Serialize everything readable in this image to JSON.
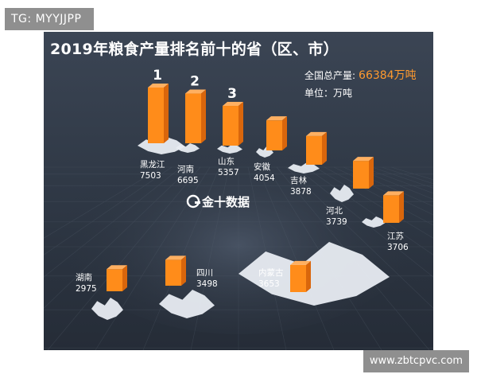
{
  "tag": "TG: MYYJJPP",
  "watermark": "www.zbtcpvc.com",
  "header": {
    "title": "2019年粮食产量排名前十的省（区、市）",
    "total_label": "全国总产量:",
    "total_value": "66384万吨",
    "unit": "单位：万吨"
  },
  "logo_text": "金十数据",
  "colors": {
    "bar_front": "#ff8c1a",
    "bar_top": "#ffb062",
    "bar_side": "#d9660c",
    "accent": "#ff9a2e"
  },
  "chart_data": {
    "type": "bar",
    "categories": [
      "黑龙江",
      "河南",
      "山东",
      "安徽",
      "吉林",
      "河北",
      "江苏",
      "湖南",
      "四川",
      "内蒙古"
    ],
    "values": [
      7503,
      6695,
      5357,
      4054,
      3878,
      3739,
      3706,
      2975,
      3498,
      3653
    ],
    "rank_labels": [
      "1",
      "2",
      "3"
    ],
    "ylabel": "万吨"
  }
}
